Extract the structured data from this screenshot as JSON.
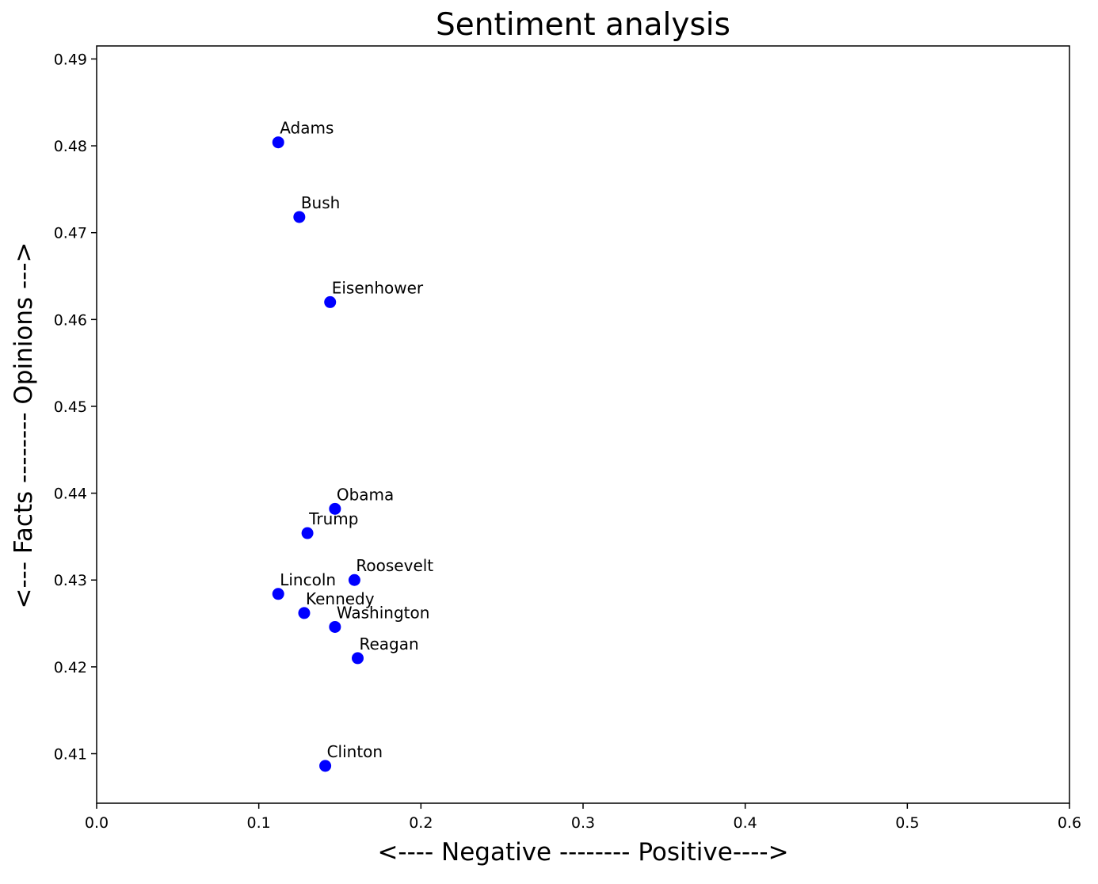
{
  "chart_data": {
    "type": "scatter",
    "title": "Sentiment analysis",
    "xlabel": "<---- Negative -------- Positive---->",
    "ylabel": "<--- Facts -------- Opinions --->",
    "xlim": [
      0.0,
      0.6
    ],
    "ylim": [
      0.4043,
      0.4915
    ],
    "x_ticks": [
      "0.0",
      "0.1",
      "0.2",
      "0.3",
      "0.4",
      "0.5",
      "0.6"
    ],
    "y_ticks": [
      "0.41",
      "0.42",
      "0.43",
      "0.44",
      "0.45",
      "0.46",
      "0.47",
      "0.48",
      "0.49"
    ],
    "grid": false,
    "marker_color": "#0000ff",
    "points": [
      {
        "label": "Adams",
        "x": 0.112,
        "y": 0.4804
      },
      {
        "label": "Bush",
        "x": 0.125,
        "y": 0.4718
      },
      {
        "label": "Eisenhower",
        "x": 0.144,
        "y": 0.462
      },
      {
        "label": "Obama",
        "x": 0.147,
        "y": 0.4382
      },
      {
        "label": "Trump",
        "x": 0.13,
        "y": 0.4354
      },
      {
        "label": "Roosevelt",
        "x": 0.159,
        "y": 0.43
      },
      {
        "label": "Lincoln",
        "x": 0.112,
        "y": 0.4284
      },
      {
        "label": "Kennedy",
        "x": 0.128,
        "y": 0.4262
      },
      {
        "label": "Washington",
        "x": 0.147,
        "y": 0.4246
      },
      {
        "label": "Reagan",
        "x": 0.161,
        "y": 0.421
      },
      {
        "label": "Clinton",
        "x": 0.141,
        "y": 0.4086
      }
    ]
  }
}
